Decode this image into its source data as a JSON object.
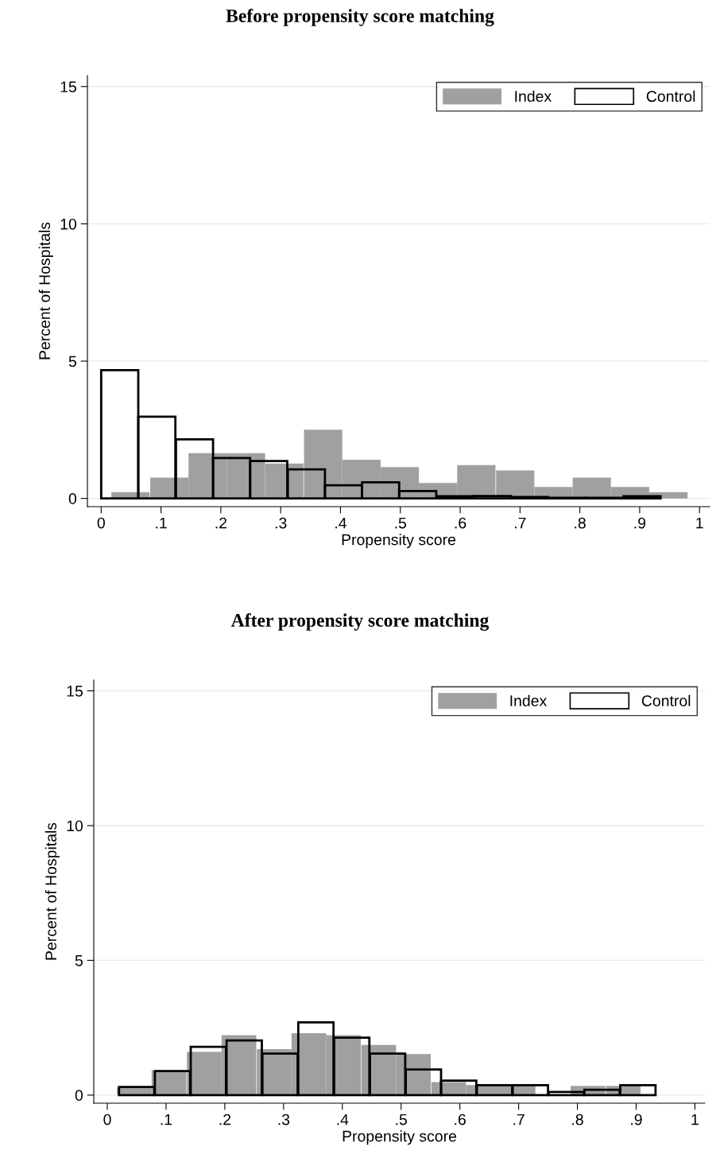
{
  "chart_data": [
    {
      "type": "bar",
      "title": "Before propensity score matching",
      "xlabel": "Propensity score",
      "ylabel": "Percent of Hospitals",
      "xlim": [
        -0.023,
        1.017
      ],
      "ylim": [
        -0.3,
        15.4
      ],
      "xticks": [
        0,
        {
          "value": 0.1,
          "label": ".1"
        },
        {
          "value": 0.2,
          "label": ".2"
        },
        {
          "value": 0.3,
          "label": ".3"
        },
        {
          "value": 0.4,
          "label": ".4"
        },
        {
          "value": 0.5,
          "label": ".5"
        },
        {
          "value": 0.6,
          "label": ".6"
        },
        {
          "value": 0.7,
          "label": ".7"
        },
        {
          "value": 0.8,
          "label": ".8"
        },
        {
          "value": 0.9,
          "label": ".9"
        },
        1
      ],
      "yticks": [
        0,
        5,
        10,
        15
      ],
      "grid": "y",
      "legend": "top right",
      "series": [
        {
          "name": "Index",
          "color": "#a0a0a0",
          "x": [
            0.049,
            0.114,
            0.178,
            0.242,
            0.306,
            0.371,
            0.435,
            0.499,
            0.563,
            0.627,
            0.692,
            0.756,
            0.82,
            0.884,
            0.948
          ],
          "values": [
            0.23,
            0.76,
            1.65,
            1.65,
            1.27,
            2.5,
            1.41,
            1.14,
            0.56,
            1.21,
            1.02,
            0.42,
            0.76,
            0.42,
            0.23
          ]
        },
        {
          "name": "Control",
          "color": "#000000",
          "x": [
            0.031,
            0.093,
            0.156,
            0.218,
            0.28,
            0.343,
            0.405,
            0.467,
            0.529,
            0.592,
            0.654,
            0.716,
            0.779,
            0.841,
            0.904
          ],
          "values": [
            4.67,
            2.98,
            2.15,
            1.47,
            1.36,
            1.06,
            0.48,
            0.59,
            0.27,
            0.08,
            0.09,
            0.05,
            0.02,
            0.02,
            0.08
          ]
        }
      ]
    },
    {
      "type": "bar",
      "title": "After propensity score matching",
      "xlabel": "Propensity score",
      "ylabel": "Percent of Hospitals",
      "xlim": [
        -0.023,
        1.017
      ],
      "ylim": [
        -0.3,
        15.4
      ],
      "xticks": [
        0,
        {
          "value": 0.1,
          "label": ".1"
        },
        {
          "value": 0.2,
          "label": ".2"
        },
        {
          "value": 0.3,
          "label": ".3"
        },
        {
          "value": 0.4,
          "label": ".4"
        },
        {
          "value": 0.5,
          "label": ".5"
        },
        {
          "value": 0.6,
          "label": ".6"
        },
        {
          "value": 0.7,
          "label": ".7"
        },
        {
          "value": 0.8,
          "label": ".8"
        },
        {
          "value": 0.9,
          "label": ".9"
        },
        1
      ],
      "yticks": [
        0,
        5,
        10,
        15
      ],
      "grid": "y",
      "legend": "top right",
      "series": [
        {
          "name": "Index",
          "color": "#a0a0a0",
          "x": [
            0.046,
            0.105,
            0.165,
            0.224,
            0.284,
            0.343,
            0.402,
            0.462,
            0.521,
            0.581,
            0.64,
            0.699,
            0.759,
            0.818,
            0.878
          ],
          "values": [
            0.3,
            0.92,
            1.6,
            2.22,
            1.71,
            2.3,
            2.22,
            1.86,
            1.52,
            0.48,
            0.37,
            0.37,
            null,
            0.34,
            0.34
          ]
        },
        {
          "name": "Control",
          "color": "#000000",
          "x": [
            0.05,
            0.111,
            0.172,
            0.233,
            0.294,
            0.355,
            0.416,
            0.477,
            0.538,
            0.598,
            0.659,
            0.72,
            0.781,
            0.842,
            0.903
          ],
          "values": [
            0.3,
            0.89,
            1.79,
            2.03,
            1.54,
            2.7,
            2.13,
            1.54,
            0.95,
            0.54,
            0.37,
            0.37,
            0.12,
            0.2,
            0.37
          ]
        }
      ]
    }
  ]
}
